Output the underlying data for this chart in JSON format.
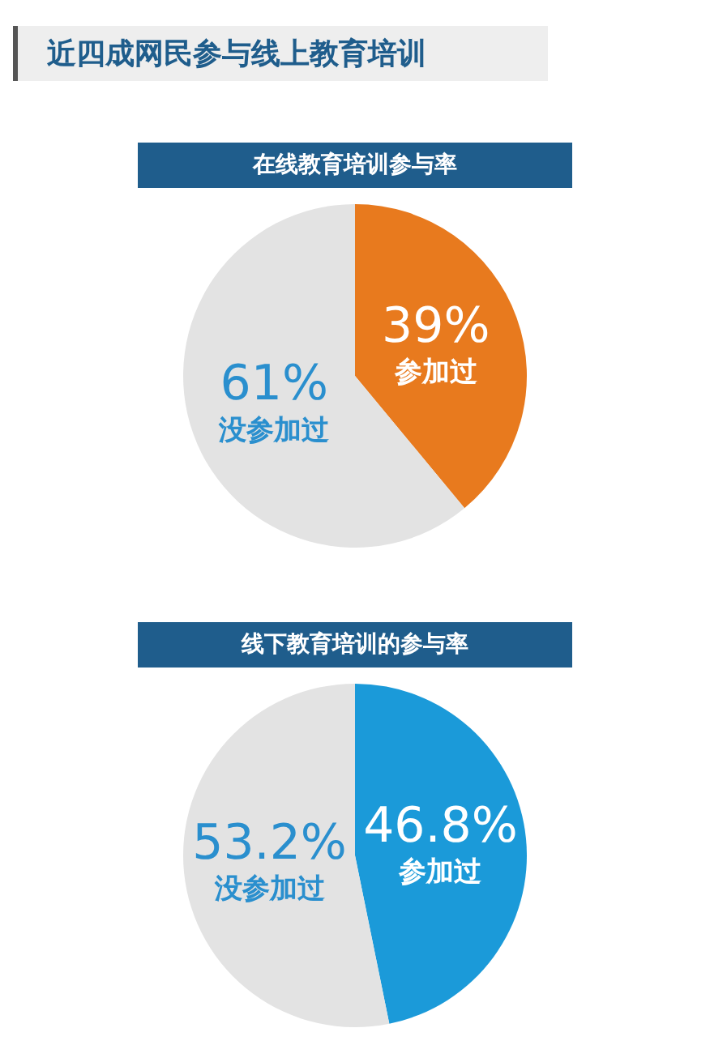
{
  "chart_data": [
    {
      "type": "pie",
      "title": "在线教育培训参与率",
      "annotations": [
        "近四成网民参与线上教育培训"
      ],
      "categories": [
        "参加过",
        "没参加过"
      ],
      "values": [
        39,
        61
      ],
      "colors": [
        "#e87a1e",
        "#e3e3e3"
      ],
      "value_labels": [
        "39%",
        "61%"
      ],
      "legend": false
    },
    {
      "type": "pie",
      "title": "线下教育培训的参与率",
      "categories": [
        "参加过",
        "没参加过"
      ],
      "values": [
        46.8,
        53.2
      ],
      "colors": [
        "#1b9ad9",
        "#e3e3e3"
      ],
      "value_labels": [
        "46.8%",
        "53.2%"
      ],
      "legend": false
    }
  ]
}
